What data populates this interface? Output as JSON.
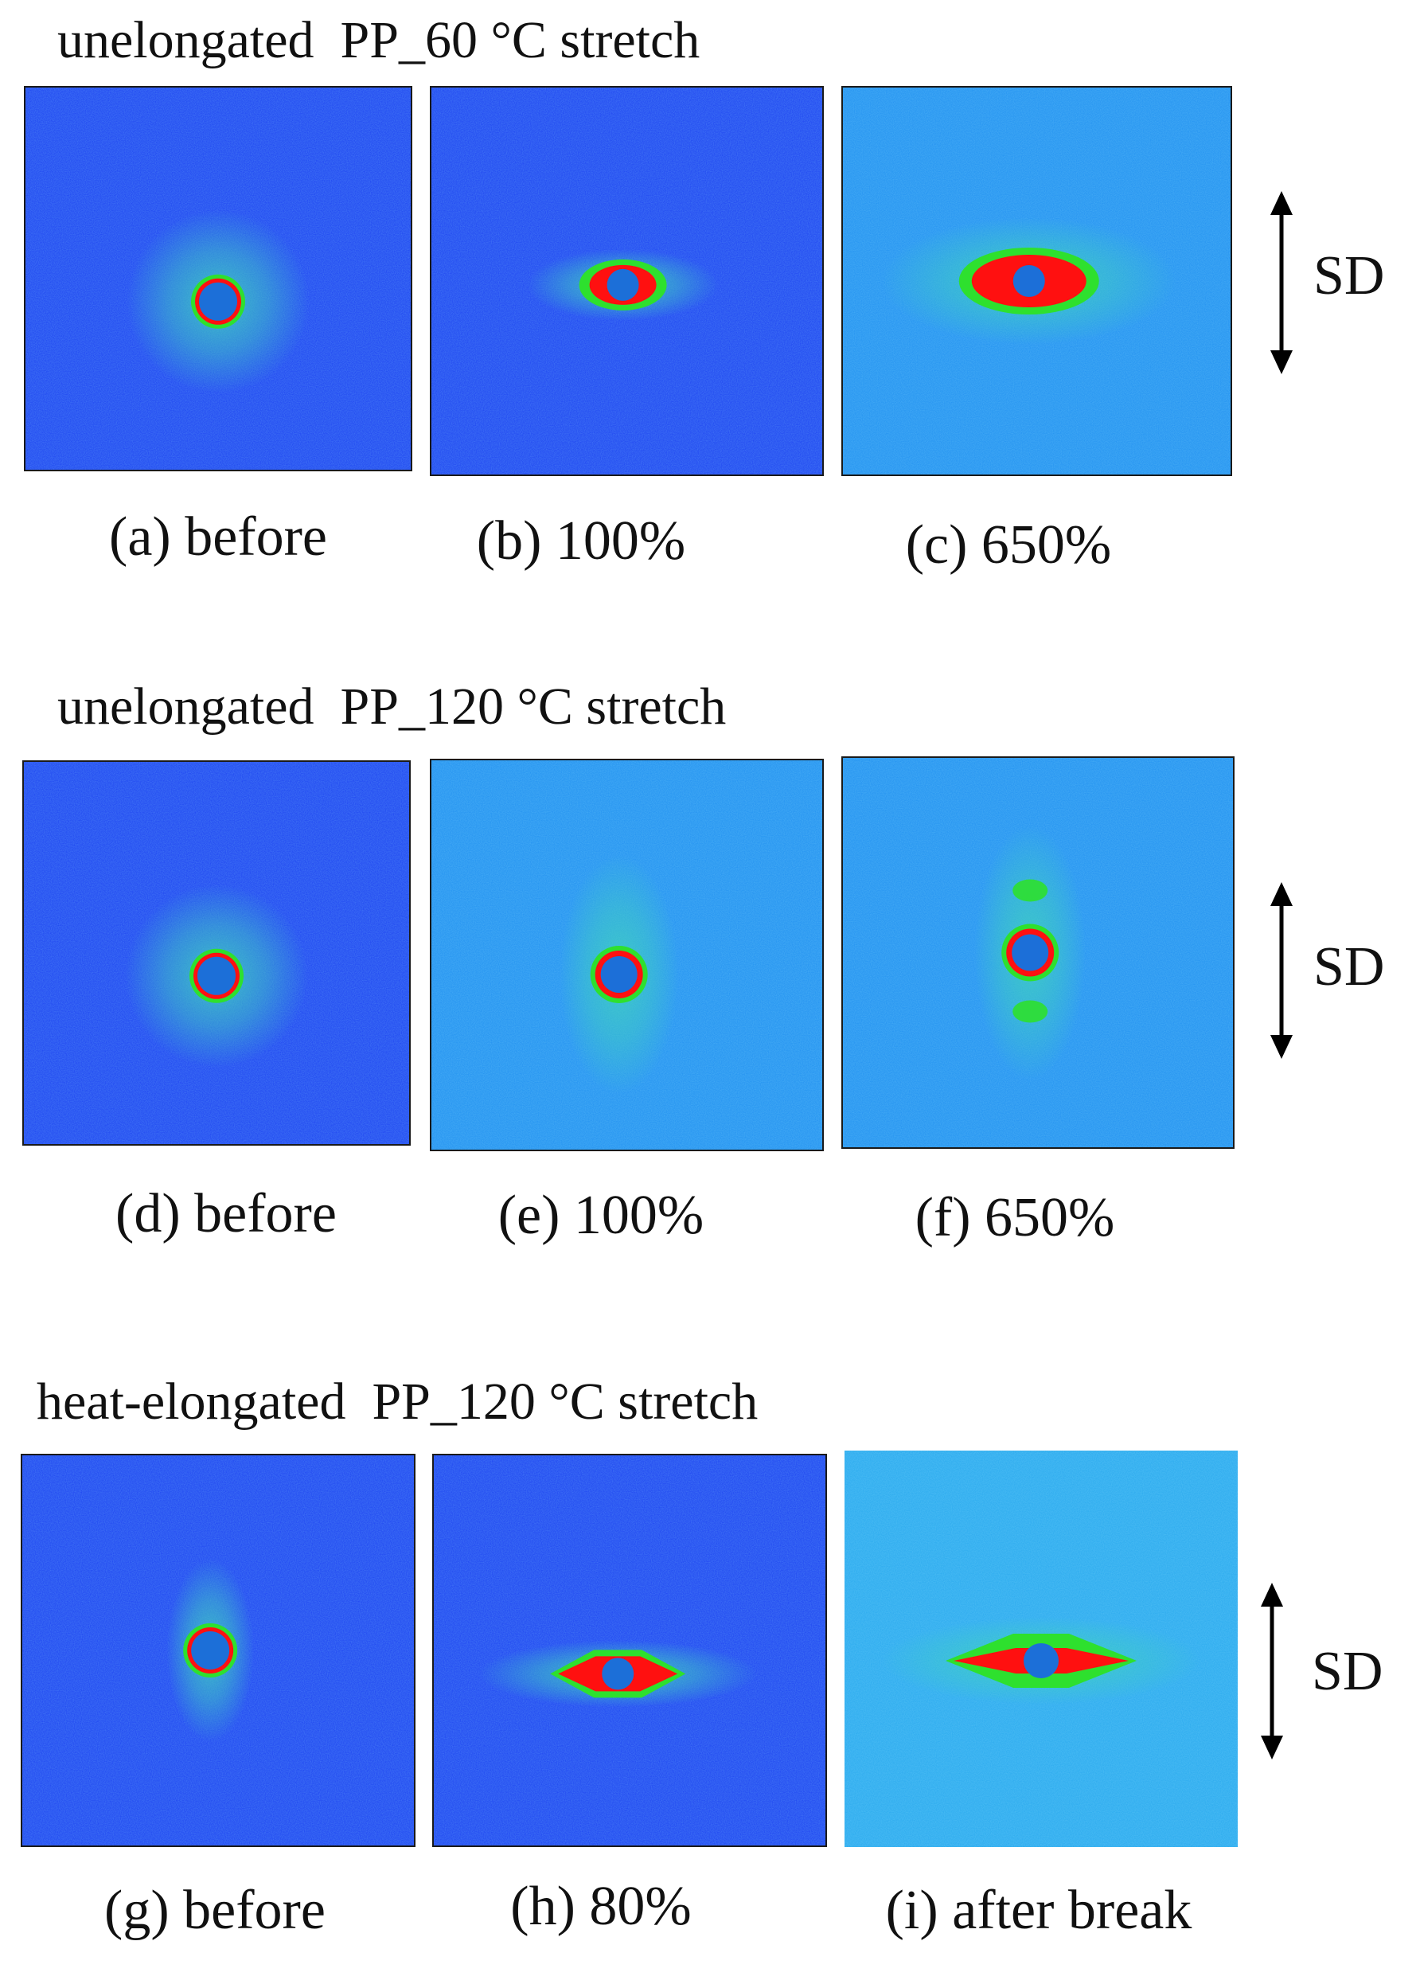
{
  "rows": [
    {
      "title": "unelongated  PP_60 °C stretch",
      "direction_label": "SD",
      "panels": [
        {
          "caption": "(a) before",
          "pattern": "isotropic-ring"
        },
        {
          "caption": "(b) 100%",
          "pattern": "equatorial-streak"
        },
        {
          "caption": "(c) 650%",
          "pattern": "equatorial-streak-strong"
        }
      ]
    },
    {
      "title": "unelongated  PP_120 °C stretch",
      "direction_label": "SD",
      "panels": [
        {
          "caption": "(d) before",
          "pattern": "isotropic-ring"
        },
        {
          "caption": "(e) 100%",
          "pattern": "meridional-diffuse"
        },
        {
          "caption": "(f) 650%",
          "pattern": "meridional-lobes"
        }
      ]
    },
    {
      "title": "heat-elongated  PP_120 °C stretch",
      "direction_label": "SD",
      "panels": [
        {
          "caption": "(g) before",
          "pattern": "meridional-weak"
        },
        {
          "caption": "(h) 80%",
          "pattern": "equatorial-streak-sharp"
        },
        {
          "caption": "(i) after break",
          "pattern": "equatorial-streak-wide"
        }
      ]
    }
  ],
  "colors": {
    "background_dark": "#1a3ff0",
    "background_light": "#1f8ff0",
    "halo": "#3fd0c0",
    "green": "#2ee02e",
    "yellow": "#f0e020",
    "red": "#ff1010",
    "beamstop": "#1c6fd8"
  }
}
